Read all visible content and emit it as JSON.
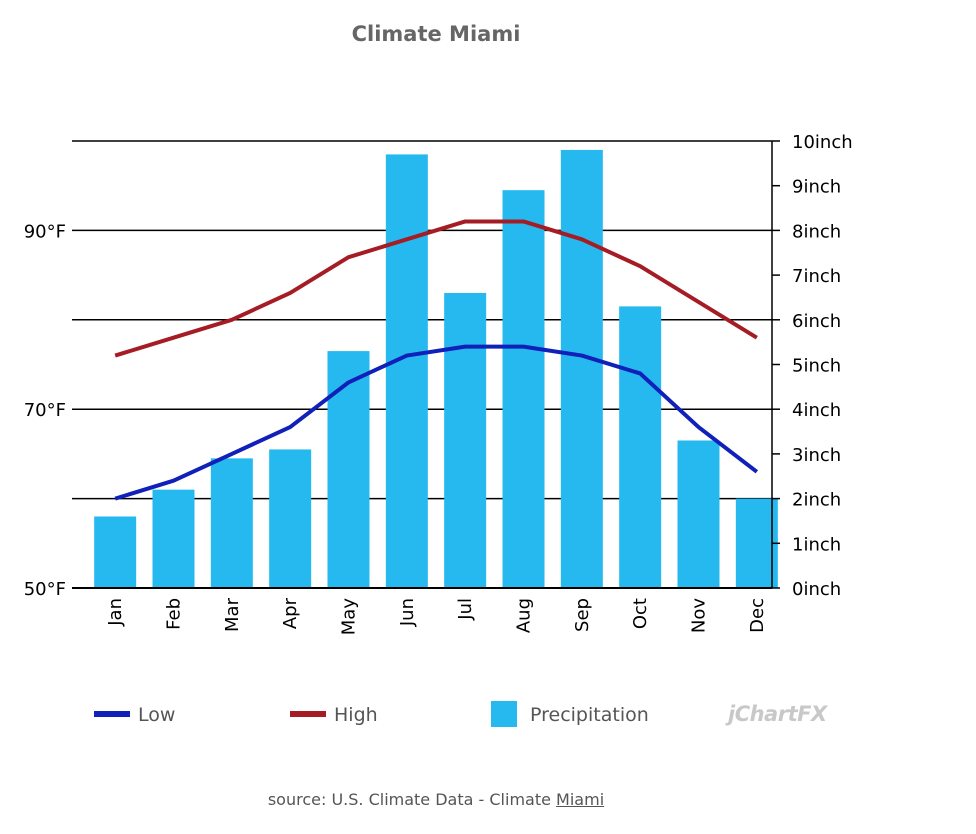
{
  "title": "Climate Miami",
  "source": {
    "prefix": "source: U.S. Climate Data - Climate ",
    "link_text": "Miami"
  },
  "brand": "jChartFX",
  "colors": {
    "low": "#1020b8",
    "high": "#a51c24",
    "precipitation": "#26b9ef",
    "grid": "#000000"
  },
  "chart_data": {
    "type": "bar",
    "title": "Climate Miami",
    "categories": [
      "Jan",
      "Feb",
      "Mar",
      "Apr",
      "May",
      "Jun",
      "Jul",
      "Aug",
      "Sep",
      "Oct",
      "Nov",
      "Dec"
    ],
    "left_axis": {
      "unit": "°F",
      "ylim": [
        50,
        100
      ],
      "tick_values": [
        50,
        70,
        90
      ],
      "tick_labels": [
        "50°F",
        "70°F",
        "90°F"
      ]
    },
    "right_axis": {
      "unit": "inch",
      "ylim": [
        0,
        10
      ],
      "tick_values": [
        0,
        1,
        2,
        3,
        4,
        5,
        6,
        7,
        8,
        9,
        10
      ],
      "tick_labels": [
        "0inch",
        "1inch",
        "2inch",
        "3inch",
        "4inch",
        "5inch",
        "6inch",
        "7inch",
        "8inch",
        "9inch",
        "10inch"
      ]
    },
    "series": [
      {
        "name": "Low",
        "type": "line",
        "axis": "left",
        "values": [
          60,
          62,
          65,
          68,
          73,
          76,
          77,
          77,
          76,
          74,
          68,
          63
        ]
      },
      {
        "name": "High",
        "type": "line",
        "axis": "left",
        "values": [
          76,
          78,
          80,
          83,
          87,
          89,
          91,
          91,
          89,
          86,
          82,
          78
        ]
      },
      {
        "name": "Precipitation",
        "type": "bar",
        "axis": "right",
        "values": [
          1.6,
          2.2,
          2.9,
          3.1,
          5.3,
          9.7,
          6.6,
          8.9,
          9.8,
          6.3,
          3.3,
          2.0
        ]
      }
    ],
    "grid": true,
    "legend_position": "bottom"
  }
}
